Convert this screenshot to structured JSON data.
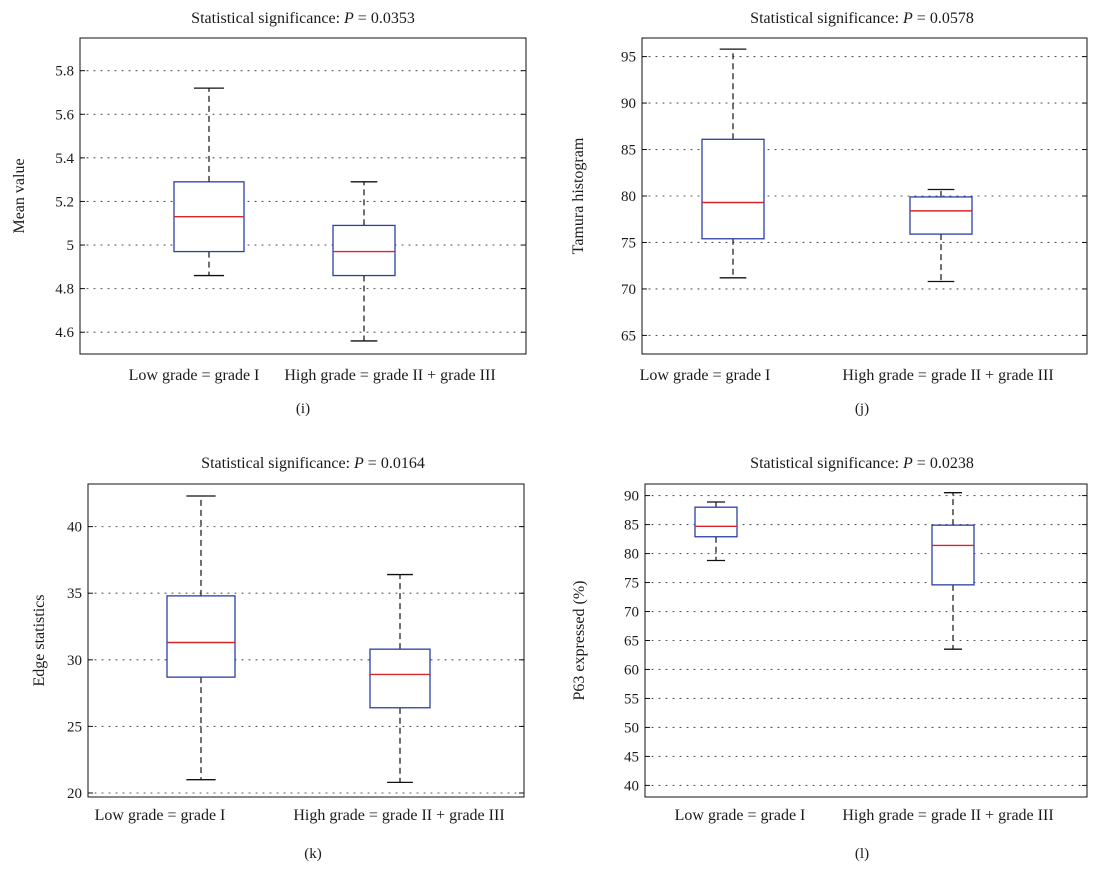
{
  "colors": {
    "box": "#2b3fa3",
    "median": "#d8262a",
    "whisker": "#111111",
    "grid": "#555555",
    "axis": "#111111",
    "background": "#ffffff"
  },
  "chart_data": [
    {
      "type": "box",
      "panel_label": "(i)",
      "title": "Statistical significance: ",
      "title_p": "P = 0.0353",
      "xlabel": "",
      "ylabel": "Mean value",
      "ylim": [
        4.5,
        5.95
      ],
      "yticks": [
        4.6,
        4.8,
        5,
        5.2,
        5.4,
        5.6,
        5.8
      ],
      "ytick_labels": [
        "4.6",
        "4.8",
        "5",
        "5.2",
        "5.4",
        "5.6",
        "5.8"
      ],
      "grid": true,
      "categories": [
        "Low grade = grade I",
        "High grade = grade II + grade III"
      ],
      "boxes": [
        {
          "whisker_low": 4.86,
          "q1": 4.97,
          "median": 5.13,
          "q3": 5.29,
          "whisker_high": 5.72
        },
        {
          "whisker_low": 4.56,
          "q1": 4.86,
          "median": 4.97,
          "q3": 5.09,
          "whisker_high": 5.29
        }
      ]
    },
    {
      "type": "box",
      "panel_label": "(j)",
      "title": "Statistical significance: ",
      "title_p": "P = 0.0578",
      "xlabel": "",
      "ylabel": "Tamura histogram",
      "ylim": [
        63,
        97
      ],
      "yticks": [
        65,
        70,
        75,
        80,
        85,
        90,
        95
      ],
      "ytick_labels": [
        "65",
        "70",
        "75",
        "80",
        "85",
        "90",
        "95"
      ],
      "grid": true,
      "categories": [
        "Low grade = grade I",
        "High grade = grade II + grade III"
      ],
      "boxes": [
        {
          "whisker_low": 71.2,
          "q1": 75.4,
          "median": 79.3,
          "q3": 86.1,
          "whisker_high": 95.8
        },
        {
          "whisker_low": 70.8,
          "q1": 75.9,
          "median": 78.4,
          "q3": 79.9,
          "whisker_high": 80.7
        }
      ]
    },
    {
      "type": "box",
      "panel_label": "(k)",
      "title": "Statistical significance: ",
      "title_p": "P = 0.0164",
      "xlabel": "",
      "ylabel": "Edge statistics",
      "ylim": [
        19.7,
        43.2
      ],
      "yticks": [
        20,
        25,
        30,
        35,
        40
      ],
      "ytick_labels": [
        "20",
        "25",
        "30",
        "35",
        "40"
      ],
      "grid": true,
      "categories": [
        "Low grade = grade I",
        "High grade = grade II + grade III"
      ],
      "boxes": [
        {
          "whisker_low": 21.0,
          "q1": 28.7,
          "median": 31.3,
          "q3": 34.8,
          "whisker_high": 42.3
        },
        {
          "whisker_low": 20.8,
          "q1": 26.4,
          "median": 28.9,
          "q3": 30.8,
          "whisker_high": 36.4
        }
      ]
    },
    {
      "type": "box",
      "panel_label": "(l)",
      "title": "Statistical significance: ",
      "title_p": "P = 0.0238",
      "xlabel": "",
      "ylabel": "P63 expressed (%)",
      "ylim": [
        38,
        92
      ],
      "yticks": [
        40,
        45,
        50,
        55,
        60,
        65,
        70,
        75,
        80,
        85,
        90
      ],
      "ytick_labels": [
        "40",
        "45",
        "50",
        "55",
        "60",
        "65",
        "70",
        "75",
        "80",
        "85",
        "90"
      ],
      "grid": true,
      "categories": [
        "Low grade = grade I",
        "High grade = grade II + grade III"
      ],
      "boxes": [
        {
          "whisker_low": 78.8,
          "q1": 82.9,
          "median": 84.7,
          "q3": 88.0,
          "whisker_high": 88.9
        },
        {
          "whisker_low": 63.5,
          "q1": 74.6,
          "median": 81.4,
          "q3": 84.9,
          "whisker_high": 90.5
        }
      ]
    }
  ]
}
